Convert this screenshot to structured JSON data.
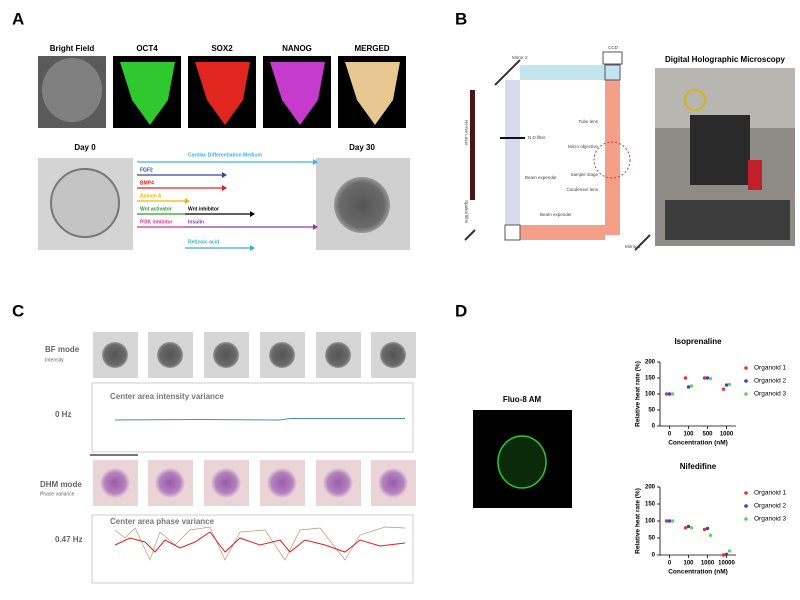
{
  "panel_a": {
    "letter": "A",
    "stains": [
      "Bright Field",
      "OCT4",
      "SOX2",
      "NANOG",
      "MERGED"
    ],
    "day_start": "Day 0",
    "day_end": "Day 30",
    "medium": "Cardiac Differentiation Medium",
    "factors": [
      "FGF2",
      "BMP4",
      "Activin A",
      "Wnt activator",
      "Wnt inhibitor",
      "PI3K inhibitor",
      "Insulin",
      "Retinoic acid"
    ]
  },
  "panel_b": {
    "letter": "B",
    "photo_title": "Digital Holographic Microscopy",
    "diagram_labels": [
      "CCD",
      "Mirror 2",
      "He-Ne Laser",
      "N.D filter",
      "Tube lens",
      "Micro objective",
      "Beam expender",
      "Sample stage",
      "Condenser lens",
      "Spatial filter",
      "Beam expender",
      "Mirror 1"
    ]
  },
  "panel_c": {
    "letter": "C",
    "bf_mode": "BF mode",
    "bf_sub": "Intensity",
    "bf_freq": "0 Hz",
    "bf_plot_title": "Center area intensity variance",
    "dhm_mode": "DHM mode",
    "dhm_sub": "Phase variance",
    "dhm_freq": "0.47 Hz",
    "dhm_plot_title": "Center area phase variance"
  },
  "panel_d": {
    "letter": "D",
    "image_title": "Fluo-8 AM"
  },
  "chart_data": [
    {
      "type": "scatter",
      "title": "Isoprenaline",
      "x_label": "Concentration (nM)",
      "y_label": "Relative heat rate (%)",
      "categories": [
        "0",
        "100",
        "500",
        "1000"
      ],
      "ylim": [
        0,
        200
      ],
      "yticks": [
        0,
        50,
        100,
        150,
        200
      ],
      "series": [
        {
          "name": "Organoid 1",
          "color": "#e8322c",
          "values": [
            100,
            150,
            150,
            115
          ]
        },
        {
          "name": "Organoid 2",
          "color": "#3b3bd6",
          "values": [
            100,
            122,
            150,
            128
          ]
        },
        {
          "name": "Organoid 3",
          "color": "#5fd35a",
          "values": [
            100,
            125,
            148,
            130
          ]
        }
      ]
    },
    {
      "type": "scatter",
      "title": "Nifedifine",
      "x_label": "Concentration (nM)",
      "y_label": "Relative heat rate (%)",
      "categories": [
        "0",
        "100",
        "1000",
        "10000"
      ],
      "ylim": [
        0,
        200
      ],
      "yticks": [
        0,
        50,
        100,
        150,
        200
      ],
      "series": [
        {
          "name": "Organoid 1",
          "color": "#e8322c",
          "values": [
            100,
            80,
            75,
            0
          ]
        },
        {
          "name": "Organoid 2",
          "color": "#3b3bd6",
          "values": [
            100,
            84,
            78,
            2
          ]
        },
        {
          "name": "Organoid 3",
          "color": "#5fd35a",
          "values": [
            100,
            80,
            58,
            12
          ]
        }
      ]
    }
  ]
}
